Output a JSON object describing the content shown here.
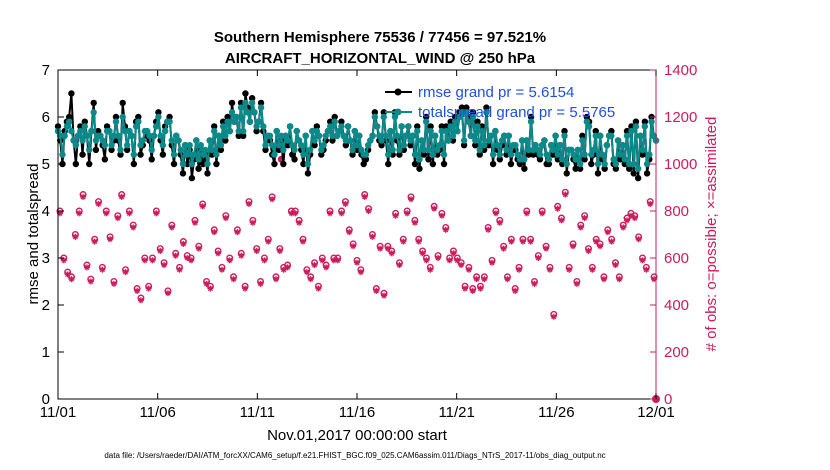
{
  "chart_data": {
    "type": "line",
    "title_line1": "Southern Hemisphere 75536 / 77456 = 97.521%",
    "title_line2": "AIRCRAFT_HORIZONTAL_WIND @ 250 hPa",
    "xlabel": "Nov.01,2017 00:00:00 start",
    "ylabel_left": "rmse and totalspread",
    "ylabel_right": "# of obs: o=possible; ×=assimilated",
    "footnote": "data file: /Users/raeder/DAI/ATM_forcXX/CAM6_setup/f.e21.FHIST_BGC.f09_025.CAM6assim.011/Diags_NTrS_2017-11/obs_diag_output.nc",
    "xlim": [
      0,
      30
    ],
    "ylim_left": [
      0,
      7
    ],
    "ylim_right": [
      0,
      1400
    ],
    "xticks": [
      0,
      5,
      10,
      15,
      20,
      25,
      30
    ],
    "xtick_labels": [
      "11/01",
      "11/06",
      "11/11",
      "11/16",
      "11/21",
      "11/26",
      "12/01"
    ],
    "yticks_left": [
      "0",
      "1",
      "2",
      "3",
      "4",
      "5",
      "6",
      "7"
    ],
    "yticks_right": [
      "0",
      "200",
      "400",
      "600",
      "800",
      "1000",
      "1200",
      "1400"
    ],
    "colors": {
      "rmse": "#000000",
      "spread": "#0a8a8a",
      "obs": "#cc1c5c",
      "legend_text": "#1f4fe0"
    },
    "series": [
      {
        "name": "rmse grand pr = 5.6154",
        "color": "#000000",
        "values": [
          5.8,
          5.5,
          5.0,
          5.7,
          5.9,
          6.0,
          6.5,
          5.5,
          5.0,
          5.6,
          5.8,
          5.2,
          5.9,
          5.6,
          5.0,
          5.7,
          6.3,
          5.3,
          5.7,
          5.6,
          5.4,
          5.1,
          5.8,
          5.7,
          5.3,
          5.5,
          6.0,
          5.5,
          5.2,
          6.3,
          5.8,
          5.3,
          5.7,
          5.6,
          5.0,
          5.9,
          6.0,
          5.2,
          5.4,
          5.7,
          5.6,
          5.5,
          5.1,
          5.6,
          5.9,
          6.1,
          5.5,
          5.2,
          5.8,
          5.9,
          6.0,
          5.4,
          5.0,
          5.6,
          5.5,
          5.2,
          4.8,
          5.4,
          5.0,
          5.3,
          4.7,
          5.1,
          5.5,
          4.9,
          5.3,
          5.0,
          5.2,
          4.8,
          5.5,
          5.2,
          5.8,
          5.0,
          5.6,
          5.3,
          5.9,
          5.5,
          6.0,
          5.7,
          6.3,
          5.9,
          6.0,
          5.6,
          6.3,
          5.6,
          6.5,
          6.2,
          5.9,
          6.4,
          6.1,
          5.7,
          5.9,
          6.3,
          5.7,
          5.3,
          5.6,
          5.5,
          5.2,
          5.0,
          5.7,
          5.3,
          5.5,
          5.0,
          5.6,
          5.4,
          5.8,
          5.2,
          5.1,
          5.7,
          5.5,
          5.3,
          5.0,
          5.6,
          4.8,
          5.2,
          5.7,
          5.4,
          5.8,
          5.6,
          5.2,
          5.3,
          5.5,
          5.7,
          5.9,
          5.5,
          6.0,
          5.6,
          5.7,
          5.9,
          5.6,
          5.4,
          5.8,
          5.5,
          5.2,
          5.7,
          5.3,
          5.6,
          5.2,
          5.0,
          5.1,
          5.3,
          5.5,
          5.6,
          6.1,
          5.8,
          5.5,
          5.4,
          6.1,
          5.5,
          5.0,
          5.7,
          5.2,
          6.1,
          5.5,
          5.2,
          5.8,
          5.3,
          5.6,
          5.8,
          5.4,
          5.6,
          5.0,
          5.8,
          4.9,
          5.5,
          5.2,
          6.0,
          5.1,
          5.8,
          5.0,
          5.6,
          5.2,
          5.3,
          5.8,
          5.0,
          5.8,
          5.5,
          5.9,
          5.5,
          6.0,
          5.7,
          6.1,
          6.2,
          5.4,
          6.2,
          6.0,
          5.6,
          6.1,
          5.4,
          5.9,
          5.2,
          5.8,
          5.3,
          6.2,
          5.4,
          5.6,
          5.0,
          5.7,
          5.3,
          5.1,
          5.4,
          5.6,
          5.2,
          5.6,
          5.0,
          5.3,
          5.3,
          5.1,
          5.0,
          5.5,
          4.9,
          5.5,
          5.2,
          6.0,
          5.2,
          5.4,
          5.2,
          5.1,
          5.4,
          5.5,
          5.0,
          5.0,
          5.4,
          5.2,
          5.6,
          5.1,
          5.4,
          5.0,
          5.7,
          4.8,
          5.3,
          5.3,
          5.1,
          4.9,
          5.3,
          4.9,
          5.6,
          5.1,
          6.0,
          5.9,
          5.0,
          5.2,
          5.7,
          4.8,
          5.6,
          5.1,
          4.9,
          5.4,
          5.6,
          5.7,
          5.0,
          4.9,
          5.5,
          5.1,
          5.4,
          5.0,
          5.7,
          4.9,
          5.8,
          4.8,
          5.9,
          4.7,
          5.6,
          5.2,
          5.9,
          4.8,
          5.1,
          6.0,
          5.6,
          5.5
        ]
      },
      {
        "name": "totalspread grand pr = 5.5765",
        "color": "#0a8a8a",
        "values": [
          5.7,
          5.6,
          5.2,
          5.6,
          5.8,
          5.9,
          5.7,
          5.5,
          5.4,
          5.6,
          5.7,
          5.5,
          5.8,
          5.6,
          5.3,
          5.7,
          6.1,
          5.5,
          5.6,
          5.6,
          5.5,
          5.4,
          5.7,
          5.7,
          5.4,
          5.6,
          5.9,
          5.6,
          5.3,
          6.0,
          5.7,
          5.4,
          5.7,
          5.6,
          5.2,
          5.8,
          5.9,
          5.4,
          5.5,
          5.7,
          5.7,
          5.6,
          5.3,
          5.6,
          5.8,
          6.0,
          5.6,
          5.4,
          5.7,
          5.9,
          5.9,
          5.5,
          5.2,
          5.6,
          5.5,
          5.3,
          5.0,
          5.4,
          5.2,
          5.4,
          5.0,
          5.2,
          5.5,
          5.1,
          5.4,
          5.2,
          5.3,
          5.0,
          5.5,
          5.3,
          5.7,
          5.2,
          5.6,
          5.4,
          5.8,
          5.6,
          5.9,
          5.7,
          6.1,
          5.9,
          6.0,
          5.7,
          6.2,
          5.7,
          6.3,
          6.1,
          5.9,
          6.3,
          6.1,
          5.8,
          5.9,
          6.2,
          5.8,
          5.4,
          5.6,
          5.6,
          5.4,
          5.2,
          5.7,
          5.4,
          5.6,
          5.3,
          5.6,
          5.5,
          5.8,
          5.4,
          5.3,
          5.7,
          5.5,
          5.4,
          5.2,
          5.6,
          5.0,
          5.3,
          5.7,
          5.5,
          5.7,
          5.6,
          5.3,
          5.4,
          5.6,
          5.7,
          5.8,
          5.6,
          5.9,
          5.6,
          5.7,
          5.8,
          5.6,
          5.5,
          5.8,
          5.5,
          5.3,
          5.7,
          5.4,
          5.6,
          5.3,
          5.2,
          5.2,
          5.4,
          5.5,
          5.6,
          6.0,
          5.8,
          5.6,
          5.5,
          6.0,
          5.6,
          5.2,
          5.7,
          5.3,
          6.0,
          5.6,
          5.3,
          5.8,
          5.4,
          5.6,
          5.8,
          5.5,
          5.6,
          5.2,
          5.7,
          5.1,
          5.5,
          5.3,
          5.9,
          5.3,
          5.7,
          5.2,
          5.6,
          5.3,
          5.4,
          5.7,
          5.2,
          5.7,
          5.5,
          5.8,
          5.6,
          5.9,
          5.7,
          6.0,
          6.1,
          5.5,
          6.1,
          5.9,
          5.6,
          6.0,
          5.5,
          5.8,
          5.3,
          5.7,
          5.4,
          6.1,
          5.5,
          5.6,
          5.2,
          5.7,
          5.4,
          5.2,
          5.5,
          5.6,
          5.3,
          5.6,
          5.2,
          5.4,
          5.4,
          5.2,
          5.1,
          5.5,
          5.1,
          5.5,
          5.3,
          5.9,
          5.3,
          5.4,
          5.3,
          5.2,
          5.4,
          5.5,
          5.2,
          5.1,
          5.4,
          5.3,
          5.6,
          5.2,
          5.4,
          5.1,
          5.6,
          5.0,
          5.3,
          5.3,
          5.2,
          5.1,
          5.3,
          5.0,
          5.5,
          5.2,
          5.9,
          5.8,
          5.2,
          5.3,
          5.6,
          5.0,
          5.6,
          5.2,
          5.0,
          5.4,
          5.6,
          5.6,
          5.1,
          5.0,
          5.5,
          5.2,
          5.4,
          5.1,
          5.6,
          5.0,
          5.7,
          5.0,
          5.8,
          4.9,
          5.6,
          5.3,
          5.8,
          5.0,
          5.2,
          5.9,
          5.6,
          5.5
        ]
      }
    ],
    "obs_possible": [
      800,
      600,
      540,
      520,
      700,
      800,
      870,
      570,
      510,
      680,
      840,
      560,
      800,
      690,
      500,
      780,
      870,
      550,
      800,
      740,
      470,
      430,
      600,
      480,
      600,
      800,
      640,
      580,
      460,
      740,
      620,
      560,
      670,
      610,
      600,
      760,
      650,
      830,
      500,
      480,
      720,
      630,
      560,
      780,
      600,
      520,
      720,
      620,
      480,
      840,
      760,
      640,
      500,
      600,
      680,
      860,
      520,
      640,
      560,
      570,
      800,
      800,
      760,
      680,
      550,
      520,
      580,
      480,
      600,
      570,
      800,
      600,
      600,
      800,
      840,
      720,
      660,
      590,
      550,
      870,
      810,
      700,
      470,
      650,
      450,
      650,
      630,
      790,
      580,
      680,
      800,
      860,
      760,
      680,
      630,
      600,
      560,
      820,
      610,
      790,
      730,
      600,
      630,
      600,
      580,
      480,
      560,
      470,
      520,
      480,
      520,
      730,
      590,
      800,
      760,
      650,
      520,
      680,
      470,
      560,
      680,
      800,
      680,
      500,
      610,
      800,
      650,
      560,
      360,
      820,
      770,
      880,
      560,
      660,
      500,
      740,
      780,
      640,
      560,
      680,
      660,
      520,
      720,
      680,
      580,
      520,
      740,
      770,
      790,
      780,
      690,
      600,
      560,
      840,
      520
    ],
    "obs_assimilated": [
      790,
      590,
      530,
      510,
      690,
      790,
      860,
      560,
      500,
      670,
      830,
      550,
      790,
      680,
      490,
      770,
      860,
      540,
      790,
      730,
      460,
      420,
      590,
      470,
      590,
      790,
      630,
      570,
      450,
      730,
      610,
      550,
      660,
      600,
      590,
      750,
      640,
      820,
      490,
      470,
      710,
      620,
      550,
      770,
      590,
      510,
      710,
      610,
      470,
      830,
      750,
      630,
      490,
      590,
      670,
      850,
      510,
      630,
      550,
      560,
      790,
      790,
      750,
      670,
      540,
      510,
      570,
      470,
      590,
      560,
      790,
      590,
      590,
      790,
      830,
      710,
      650,
      580,
      540,
      860,
      800,
      690,
      460,
      640,
      440,
      640,
      620,
      780,
      570,
      670,
      790,
      850,
      750,
      670,
      620,
      590,
      550,
      810,
      600,
      780,
      720,
      590,
      620,
      590,
      570,
      470,
      550,
      460,
      510,
      470,
      510,
      720,
      580,
      790,
      750,
      640,
      510,
      670,
      460,
      550,
      670,
      790,
      670,
      490,
      600,
      790,
      640,
      550,
      350,
      810,
      760,
      870,
      550,
      650,
      490,
      730,
      770,
      630,
      550,
      670,
      650,
      510,
      710,
      670,
      570,
      510,
      730,
      760,
      780,
      770,
      680,
      590,
      550,
      830,
      510
    ]
  }
}
